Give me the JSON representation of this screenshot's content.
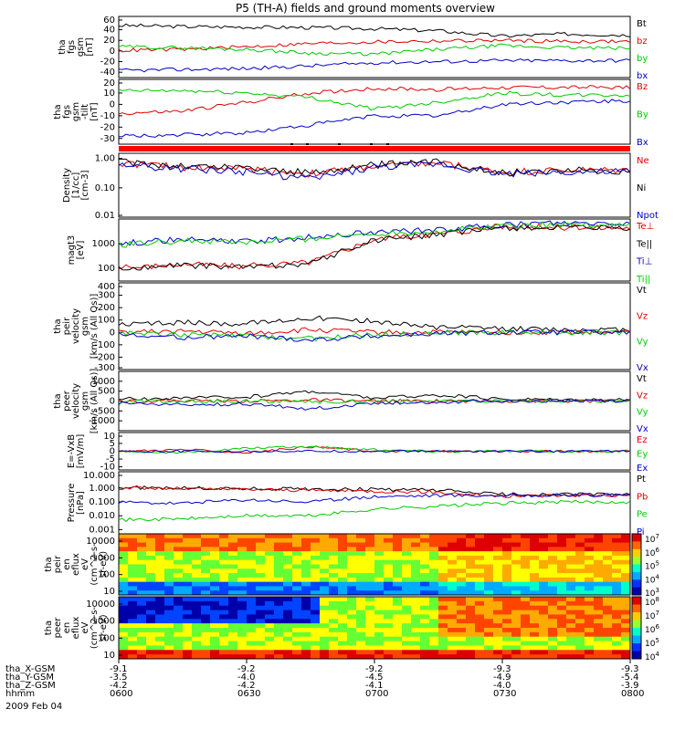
{
  "title": "P5 (TH-A) fields and ground moments overview",
  "date_label": "2009 Feb 04",
  "colors": {
    "black": "#000000",
    "red": "#e00000",
    "green": "#00cc00",
    "blue": "#0000cc",
    "bar_red": "#ff0000"
  },
  "time_axis": {
    "ticks": [
      "0600",
      "0630",
      "0700",
      "0730",
      "0800"
    ],
    "rows": [
      {
        "label": "tha_X-GSM",
        "values": [
          "-9.1",
          "-9.2",
          "-9.2",
          "-9.3",
          "-9.3"
        ]
      },
      {
        "label": "tha_Y-GSM",
        "values": [
          "-3.5",
          "-4.0",
          "-4.5",
          "-4.9",
          "-5.4"
        ]
      },
      {
        "label": "tha_Z-GSM",
        "values": [
          "-4.2",
          "-4.2",
          "-4.1",
          "-4.0",
          "-3.9"
        ]
      },
      {
        "label": "hhmm",
        "values": []
      }
    ]
  },
  "chart_data": [
    {
      "type": "line",
      "id": "fgs_gsm",
      "ylabel": [
        "tha",
        "fgs",
        "gsm",
        "[nT]"
      ],
      "ylim": [
        -50,
        65
      ],
      "yticks": [
        "60",
        "40",
        "20",
        "0",
        "-20",
        "-40"
      ],
      "x": [
        "0600",
        "0615",
        "0630",
        "0645",
        "0700",
        "0715",
        "0730",
        "0745",
        "0800"
      ],
      "series": [
        {
          "name": "Bt",
          "color": "#000000",
          "values": [
            48,
            46,
            45,
            44,
            42,
            38,
            28,
            32,
            30
          ]
        },
        {
          "name": "bz",
          "color": "#e00000",
          "values": [
            1,
            3,
            8,
            14,
            17,
            19,
            20,
            18,
            18
          ]
        },
        {
          "name": "by",
          "color": "#00cc00",
          "values": [
            8,
            6,
            3,
            -4,
            -6,
            3,
            10,
            6,
            5
          ]
        },
        {
          "name": "bx",
          "color": "#0000cc",
          "values": [
            -37,
            -35,
            -33,
            -28,
            -22,
            -20,
            -18,
            -18,
            -18
          ]
        }
      ]
    },
    {
      "type": "line",
      "id": "fgs_gse",
      "ylabel": [
        "tha",
        "fgs",
        "gsm",
        "-tilt",
        "[nT]"
      ],
      "ylim": [
        -35,
        22
      ],
      "yticks": [
        "20",
        "10",
        "0",
        "-10",
        "-20",
        "-30"
      ],
      "x": [
        "0600",
        "0615",
        "0630",
        "0645",
        "0700",
        "0715",
        "0730",
        "0745",
        "0800"
      ],
      "series": [
        {
          "name": "Bz",
          "color": "#e00000",
          "values": [
            -8,
            -6,
            2,
            10,
            14,
            13,
            15,
            15,
            15
          ]
        },
        {
          "name": "By",
          "color": "#00cc00",
          "values": [
            12,
            12,
            10,
            6,
            -4,
            2,
            10,
            8,
            8
          ]
        },
        {
          "name": "Bx",
          "color": "#0000cc",
          "values": [
            -28,
            -27,
            -25,
            -18,
            -10,
            -10,
            0,
            2,
            3
          ]
        }
      ]
    },
    {
      "type": "line",
      "id": "density",
      "ylabel": [
        "Density",
        "[1/cc]",
        "[cm-3]"
      ],
      "ylim": [
        0.01,
        1.5
      ],
      "scale": "log",
      "yticks": [
        "1.00",
        "0.10",
        "0.01"
      ],
      "x": [
        "0600",
        "0615",
        "0630",
        "0645",
        "0700",
        "0715",
        "0730",
        "0745",
        "0800"
      ],
      "series": [
        {
          "name": "Ne",
          "color": "#e00000",
          "values": [
            0.7,
            0.5,
            0.45,
            0.3,
            0.55,
            0.7,
            0.35,
            0.4,
            0.4
          ]
        },
        {
          "name": "Ni",
          "color": "#000000",
          "values": [
            0.75,
            0.55,
            0.5,
            0.32,
            0.6,
            0.75,
            0.33,
            0.4,
            0.38
          ]
        },
        {
          "name": "Npot",
          "color": "#0000cc",
          "values": [
            0.6,
            0.45,
            0.35,
            0.2,
            0.5,
            0.65,
            0.3,
            0.35,
            0.35
          ]
        }
      ]
    },
    {
      "type": "line",
      "id": "temperature",
      "ylabel": [
        "magt3",
        "[eV]"
      ],
      "ylim": [
        30,
        10000
      ],
      "scale": "log",
      "yticks": [
        "1000",
        "100"
      ],
      "x": [
        "0600",
        "0615",
        "0630",
        "0645",
        "0700",
        "0715",
        "0730",
        "0745",
        "0800"
      ],
      "series": [
        {
          "name": "Te⊥",
          "color": "#e00000",
          "values": [
            100,
            150,
            120,
            180,
            1500,
            2500,
            5000,
            4500,
            4500
          ]
        },
        {
          "name": "Te||",
          "color": "#000000",
          "values": [
            90,
            130,
            110,
            160,
            1400,
            2300,
            4500,
            4200,
            4200
          ]
        },
        {
          "name": "Ti⊥",
          "color": "#0000cc",
          "values": [
            1000,
            1500,
            1200,
            1800,
            3000,
            3500,
            6000,
            6500,
            6500
          ]
        },
        {
          "name": "Ti||",
          "color": "#00cc00",
          "values": [
            900,
            1300,
            1100,
            1600,
            2600,
            3200,
            5500,
            6000,
            6000
          ]
        }
      ]
    },
    {
      "type": "line",
      "id": "peir_velocity",
      "ylabel": [
        "tha",
        "peir",
        "velocity",
        "gsm",
        "[km/s (All Qs)]"
      ],
      "ylim": [
        -300,
        400
      ],
      "yticks": [
        "400",
        "300",
        "200",
        "100",
        "0",
        "-100",
        "-200",
        "-300"
      ],
      "x": [
        "0600",
        "0615",
        "0630",
        "0645",
        "0700",
        "0715",
        "0730",
        "0745",
        "0800"
      ],
      "series": [
        {
          "name": "Vt",
          "color": "#000000",
          "values": [
            60,
            80,
            70,
            120,
            90,
            40,
            30,
            20,
            20
          ]
        },
        {
          "name": "Vz",
          "color": "#e00000",
          "values": [
            0,
            10,
            -10,
            20,
            0,
            0,
            0,
            0,
            0
          ]
        },
        {
          "name": "Vy",
          "color": "#00cc00",
          "values": [
            0,
            -20,
            -30,
            -50,
            -20,
            0,
            0,
            0,
            0
          ]
        },
        {
          "name": "Vx",
          "color": "#0000cc",
          "values": [
            -20,
            -40,
            -30,
            -60,
            -30,
            -10,
            0,
            0,
            0
          ]
        }
      ]
    },
    {
      "type": "line",
      "id": "peer_velocity",
      "ylabel": [
        "tha",
        "peer",
        "velocity",
        "gsm",
        "[km/s (All Qs)]"
      ],
      "ylim": [
        -1500,
        1500
      ],
      "yticks": [
        "1000",
        "500",
        "0",
        "-500",
        "-1000"
      ],
      "x": [
        "0600",
        "0615",
        "0630",
        "0645",
        "0700",
        "0715",
        "0730",
        "0745",
        "0800"
      ],
      "series": [
        {
          "name": "Vt",
          "color": "#000000",
          "values": [
            100,
            150,
            200,
            500,
            150,
            300,
            100,
            80,
            80
          ]
        },
        {
          "name": "Vz",
          "color": "#e00000",
          "values": [
            0,
            20,
            0,
            50,
            0,
            0,
            0,
            0,
            0
          ]
        },
        {
          "name": "Vy",
          "color": "#00cc00",
          "values": [
            0,
            -20,
            0,
            -50,
            0,
            0,
            0,
            0,
            0
          ]
        },
        {
          "name": "Vx",
          "color": "#0000cc",
          "values": [
            -100,
            -200,
            -150,
            -400,
            -100,
            -50,
            0,
            0,
            0
          ]
        }
      ]
    },
    {
      "type": "line",
      "id": "efield",
      "ylabel": [
        "E=-VxB",
        "[mV/m]"
      ],
      "ylim": [
        -12,
        12
      ],
      "yticks": [
        "10",
        "5",
        "0",
        "-5",
        "-10"
      ],
      "x": [
        "0600",
        "0615",
        "0630",
        "0645",
        "0700",
        "0715",
        "0730",
        "0745",
        "0800"
      ],
      "series": [
        {
          "name": "Ez",
          "color": "#e00000",
          "values": [
            0,
            1,
            -1,
            3,
            0,
            0,
            0,
            0,
            0
          ]
        },
        {
          "name": "Ey",
          "color": "#00cc00",
          "values": [
            0,
            -1,
            2,
            3,
            1,
            0,
            0,
            0,
            0
          ]
        },
        {
          "name": "Ex",
          "color": "#0000cc",
          "values": [
            0,
            0,
            0,
            0,
            0,
            0,
            0,
            0,
            0
          ]
        }
      ]
    },
    {
      "type": "line",
      "id": "pressure",
      "ylabel": [
        "Pressure",
        "[nPa]"
      ],
      "ylim": [
        0.0005,
        15
      ],
      "scale": "log",
      "yticks": [
        "10.000",
        "1.000",
        "0.100",
        "0.010",
        "0.001"
      ],
      "x": [
        "0600",
        "0615",
        "0630",
        "0645",
        "0700",
        "0715",
        "0730",
        "0745",
        "0800"
      ],
      "series": [
        {
          "name": "Pt",
          "color": "#000000",
          "values": [
            1.1,
            1.0,
            0.9,
            0.85,
            0.8,
            0.7,
            0.35,
            0.35,
            0.35
          ]
        },
        {
          "name": "Pb",
          "color": "#e00000",
          "values": [
            1.0,
            0.9,
            0.8,
            0.7,
            0.6,
            0.5,
            0.25,
            0.3,
            0.3
          ]
        },
        {
          "name": "Pe",
          "color": "#00cc00",
          "values": [
            0.005,
            0.006,
            0.01,
            0.01,
            0.03,
            0.05,
            0.08,
            0.1,
            0.1
          ]
        },
        {
          "name": "Pi",
          "color": "#0000cc",
          "values": [
            0.1,
            0.08,
            0.15,
            0.1,
            0.25,
            0.3,
            0.3,
            0.3,
            0.3
          ]
        }
      ]
    },
    {
      "type": "heatmap",
      "id": "peir_spectrogram",
      "ylabel": [
        "tha",
        "peir",
        "en",
        "eflux",
        "eV",
        "(cm^2-s-",
        "sr-eV)"
      ],
      "yticks": [
        "10000",
        "1000",
        "100",
        "10"
      ],
      "colorbar": [
        "10^7",
        "10^6",
        "10^5",
        "10^4",
        "10^3"
      ]
    },
    {
      "type": "heatmap",
      "id": "peer_spectrogram",
      "ylabel": [
        "tha",
        "peer",
        "en",
        "eflux",
        "eV",
        "(cm^2-s-",
        "sr-eV)"
      ],
      "yticks": [
        "10000",
        "1000",
        "100",
        "10"
      ],
      "colorbar": [
        "10^8",
        "10^7",
        "10^6",
        "10^5",
        "10^4"
      ]
    }
  ]
}
